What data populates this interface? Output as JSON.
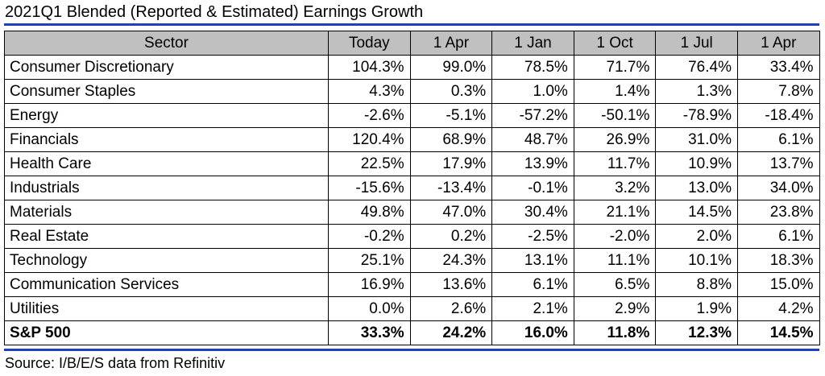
{
  "title": "2021Q1 Blended (Reported & Estimated) Earnings Growth",
  "source": "Source: I/B/E/S data from Refinitiv",
  "colors": {
    "header_background": "#c0c0c0",
    "rule": "#1f3fbf"
  },
  "chart_data": {
    "type": "table",
    "title": "2021Q1 Blended (Reported & Estimated) Earnings Growth",
    "columns": [
      "Sector",
      "Today",
      "1 Apr",
      "1 Jan",
      "1 Oct",
      "1 Jul",
      "1 Apr"
    ],
    "rows": [
      {
        "sector": "Consumer Discretionary",
        "values": [
          "104.3%",
          "99.0%",
          "78.5%",
          "71.7%",
          "76.4%",
          "33.4%"
        ]
      },
      {
        "sector": "Consumer Staples",
        "values": [
          "4.3%",
          "0.3%",
          "1.0%",
          "1.4%",
          "1.3%",
          "7.8%"
        ]
      },
      {
        "sector": "Energy",
        "values": [
          "-2.6%",
          "-5.1%",
          "-57.2%",
          "-50.1%",
          "-78.9%",
          "-18.4%"
        ]
      },
      {
        "sector": "Financials",
        "values": [
          "120.4%",
          "68.9%",
          "48.7%",
          "26.9%",
          "31.0%",
          "6.1%"
        ]
      },
      {
        "sector": "Health Care",
        "values": [
          "22.5%",
          "17.9%",
          "13.9%",
          "11.7%",
          "10.9%",
          "13.7%"
        ]
      },
      {
        "sector": "Industrials",
        "values": [
          "-15.6%",
          "-13.4%",
          "-0.1%",
          "3.2%",
          "13.0%",
          "34.0%"
        ]
      },
      {
        "sector": "Materials",
        "values": [
          "49.8%",
          "47.0%",
          "30.4%",
          "21.1%",
          "14.5%",
          "23.8%"
        ]
      },
      {
        "sector": "Real Estate",
        "values": [
          "-0.2%",
          "0.2%",
          "-2.5%",
          "-2.0%",
          "2.0%",
          "6.1%"
        ]
      },
      {
        "sector": "Technology",
        "values": [
          "25.1%",
          "24.3%",
          "13.1%",
          "11.1%",
          "10.1%",
          "18.3%"
        ]
      },
      {
        "sector": "Communication Services",
        "values": [
          "16.9%",
          "13.6%",
          "6.1%",
          "6.5%",
          "8.8%",
          "15.0%"
        ]
      },
      {
        "sector": "Utilities",
        "values": [
          "0.0%",
          "2.6%",
          "2.1%",
          "2.9%",
          "1.9%",
          "4.2%"
        ]
      }
    ],
    "total": {
      "sector": "S&P 500",
      "values": [
        "33.3%",
        "24.2%",
        "16.0%",
        "11.8%",
        "12.3%",
        "14.5%"
      ]
    }
  }
}
